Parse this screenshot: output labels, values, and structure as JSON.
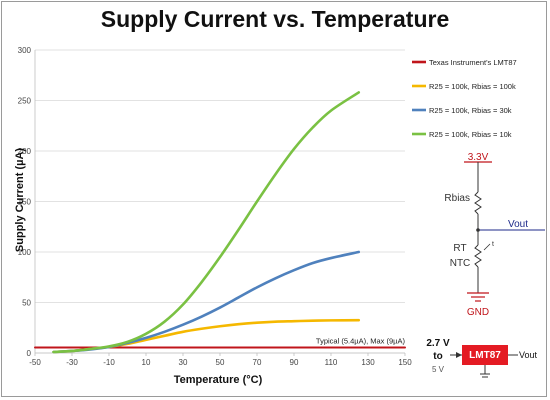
{
  "chart_data": {
    "type": "line",
    "title": "Supply Current vs. Temperature",
    "xlabel": "Temperature (°C)",
    "ylabel": "Supply Current (µA)",
    "xlim": [
      -50,
      150
    ],
    "ylim": [
      0,
      300
    ],
    "x_ticks": [
      "-50",
      "-30",
      "-10",
      "10",
      "30",
      "50",
      "70",
      "90",
      "110",
      "130",
      "150"
    ],
    "y_ticks": [
      "0",
      "50",
      "100",
      "150",
      "200",
      "250",
      "300"
    ],
    "grid": "horizontal",
    "legend_position": "right",
    "series": [
      {
        "name": "Texas Instrument's LMT87",
        "color": "#c0151b",
        "points": [
          [
            -50,
            5.4
          ],
          [
            150,
            5.4
          ]
        ]
      },
      {
        "name": "R25 = 100k, Rbias = 100k",
        "color": "#f5b800",
        "points": [
          [
            -40,
            1
          ],
          [
            -30,
            2
          ],
          [
            -20,
            4
          ],
          [
            -10,
            6
          ],
          [
            0,
            9
          ],
          [
            10,
            13
          ],
          [
            20,
            17
          ],
          [
            30,
            21
          ],
          [
            40,
            24
          ],
          [
            50,
            26.5
          ],
          [
            60,
            28.5
          ],
          [
            70,
            30
          ],
          [
            80,
            31
          ],
          [
            90,
            31.5
          ],
          [
            100,
            32
          ],
          [
            110,
            32.3
          ],
          [
            125,
            32.5
          ]
        ]
      },
      {
        "name": "R25 = 100k, Rbias = 30k",
        "color": "#4f81bd",
        "points": [
          [
            -40,
            1
          ],
          [
            -30,
            2
          ],
          [
            -20,
            3.5
          ],
          [
            -10,
            6
          ],
          [
            0,
            10
          ],
          [
            10,
            15
          ],
          [
            20,
            21
          ],
          [
            30,
            28
          ],
          [
            40,
            36
          ],
          [
            50,
            45
          ],
          [
            60,
            55
          ],
          [
            70,
            65
          ],
          [
            80,
            74
          ],
          [
            90,
            82
          ],
          [
            100,
            89
          ],
          [
            110,
            94
          ],
          [
            125,
            100
          ]
        ]
      },
      {
        "name": "R25 = 100k, Rbias = 10k",
        "color": "#7ac143",
        "points": [
          [
            -40,
            1
          ],
          [
            -30,
            2
          ],
          [
            -20,
            4
          ],
          [
            -10,
            6.5
          ],
          [
            0,
            11
          ],
          [
            10,
            19
          ],
          [
            20,
            31
          ],
          [
            30,
            48
          ],
          [
            40,
            70
          ],
          [
            50,
            95
          ],
          [
            60,
            122
          ],
          [
            70,
            150
          ],
          [
            80,
            177
          ],
          [
            90,
            202
          ],
          [
            100,
            223
          ],
          [
            110,
            240
          ],
          [
            125,
            258
          ]
        ]
      }
    ],
    "annotations": [
      {
        "text": "Typical (5.4µA), Max (9µA)",
        "x": 150,
        "y": 5.4
      }
    ]
  },
  "schematic": {
    "vcc": "3.3V",
    "rbias": "Rbias",
    "vout": "Vout",
    "rt": "RT",
    "ntc": "NTC",
    "gnd": "GND",
    "t_symbol": "t",
    "color": "#c0151b"
  },
  "lmt87": {
    "supply_range_top": "2.7 V",
    "supply_range_mid": "to",
    "supply_range_bot": "5 V",
    "chip": "LMT87",
    "vout": "Vout",
    "chip_color": "#e41b23"
  }
}
